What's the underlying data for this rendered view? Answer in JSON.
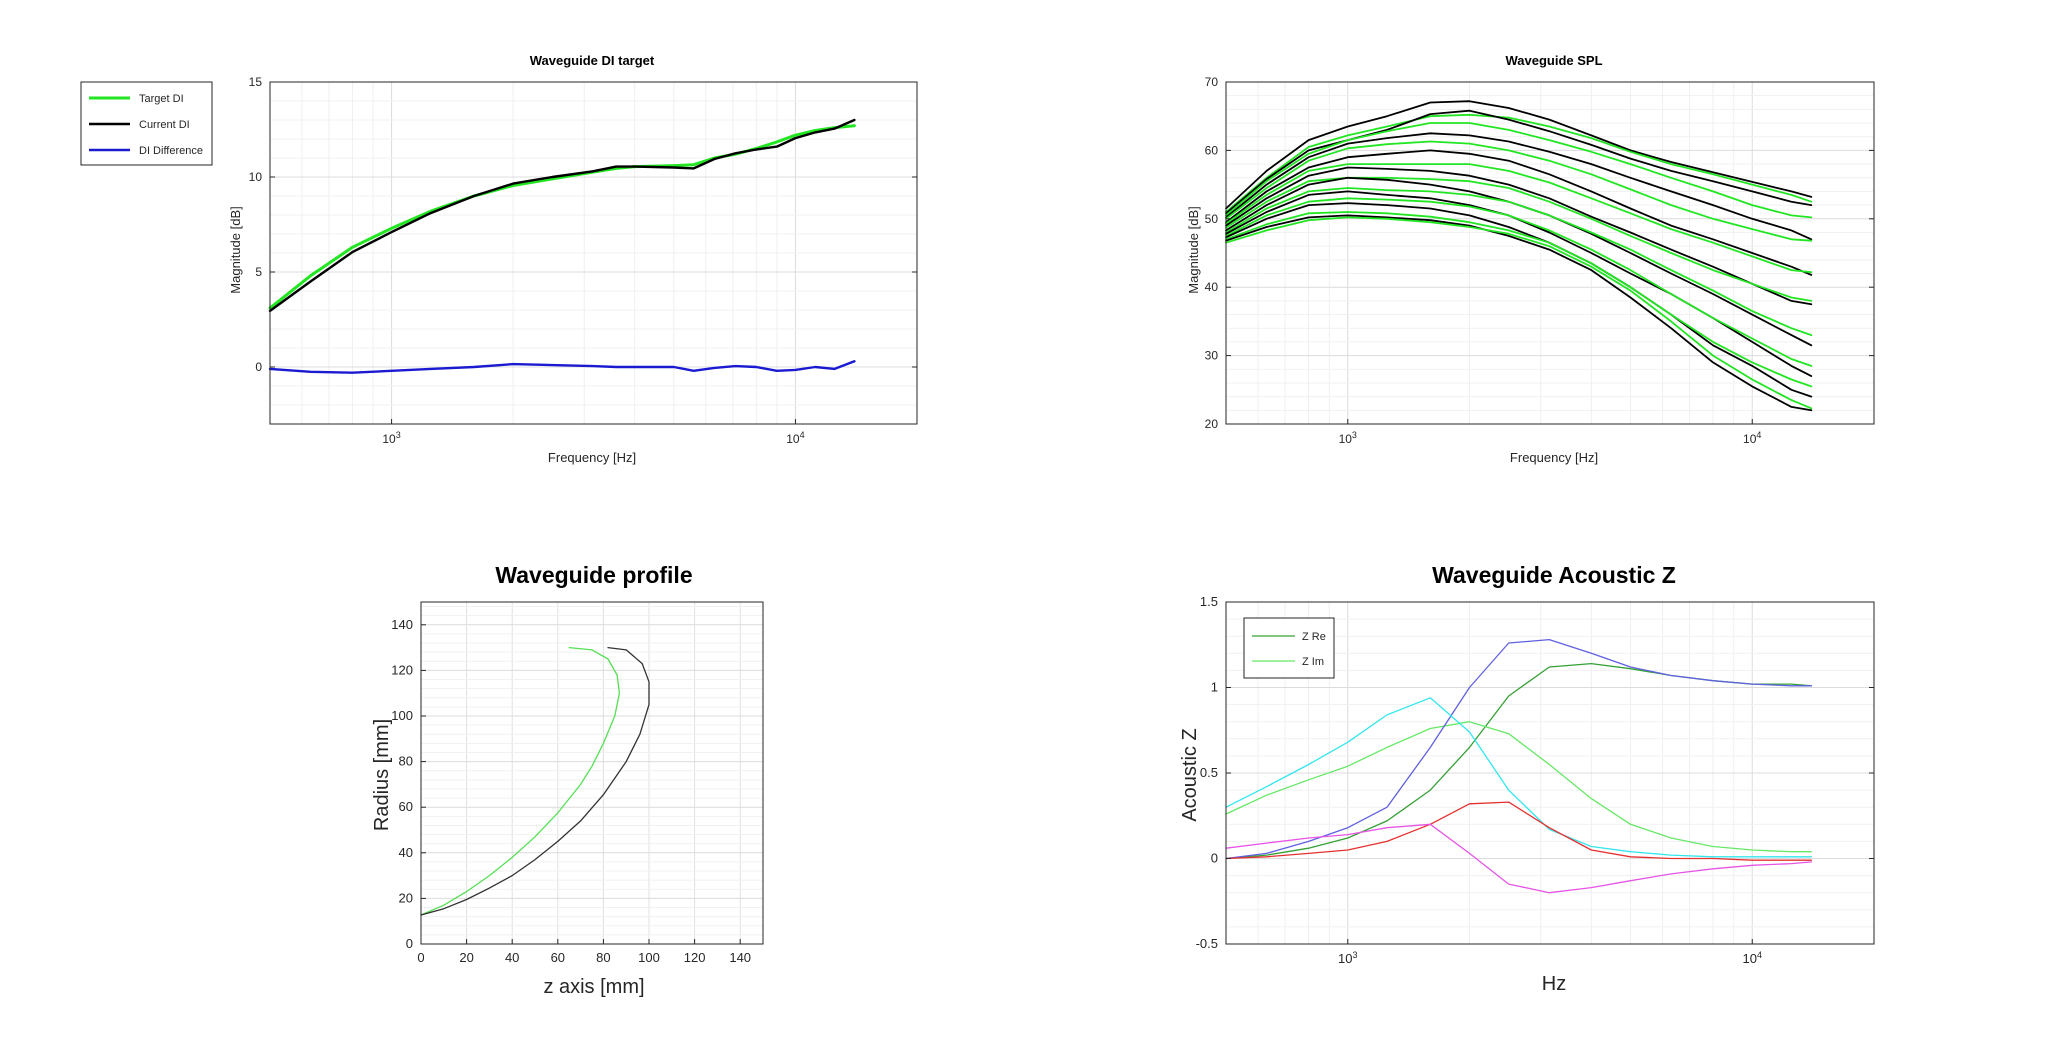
{
  "chart_data": [
    {
      "type": "line",
      "title": "Waveguide DI target",
      "xlabel": "Frequency [Hz]",
      "ylabel": "Magnitude [dB]",
      "xscale": "log",
      "xlim": [
        500,
        20000
      ],
      "ylim": [
        -3,
        15
      ],
      "yticks": [
        0,
        5,
        10,
        15
      ],
      "xticks": [
        {
          "value": 1000,
          "base": "10",
          "exp": "3"
        },
        {
          "value": 10000,
          "base": "10",
          "exp": "4"
        }
      ],
      "grid": true,
      "legend_position": "outside-left",
      "x": [
        500,
        630,
        800,
        1000,
        1250,
        1600,
        2000,
        2500,
        3150,
        3600,
        4000,
        5000,
        5600,
        6300,
        7100,
        8000,
        9000,
        10000,
        11200,
        12500,
        14000
      ],
      "series": [
        {
          "name": "Target DI",
          "color": "#22e622",
          "width": 3,
          "values": [
            3.1,
            4.8,
            6.3,
            7.3,
            8.2,
            9.0,
            9.55,
            9.9,
            10.25,
            10.45,
            10.55,
            10.6,
            10.65,
            11.0,
            11.2,
            11.5,
            11.85,
            12.2,
            12.45,
            12.6,
            12.7
          ]
        },
        {
          "name": "Current DI",
          "color": "#000000",
          "width": 2.4,
          "values": [
            2.95,
            4.5,
            6.05,
            7.1,
            8.1,
            9.0,
            9.65,
            10.0,
            10.3,
            10.55,
            10.55,
            10.5,
            10.45,
            10.95,
            11.25,
            11.45,
            11.6,
            12.05,
            12.35,
            12.55,
            13.0
          ]
        },
        {
          "name": "DI Difference",
          "color": "#1a1ad0",
          "width": 2.4,
          "values": [
            -0.1,
            -0.25,
            -0.3,
            -0.2,
            -0.1,
            0.0,
            0.15,
            0.1,
            0.05,
            0.0,
            0.0,
            0.0,
            -0.2,
            -0.05,
            0.05,
            0.0,
            -0.2,
            -0.15,
            0.0,
            -0.1,
            0.3
          ]
        }
      ]
    },
    {
      "type": "line",
      "title": "Waveguide SPL",
      "xlabel": "Frequency [Hz]",
      "ylabel": "Magnitude [dB]",
      "xscale": "log",
      "xlim": [
        500,
        20000
      ],
      "ylim": [
        20,
        70
      ],
      "yticks": [
        20,
        30,
        40,
        50,
        60,
        70
      ],
      "xticks": [
        {
          "value": 1000,
          "base": "10",
          "exp": "3"
        },
        {
          "value": 10000,
          "base": "10",
          "exp": "4"
        }
      ],
      "grid": true,
      "x": [
        500,
        630,
        800,
        1000,
        1250,
        1600,
        2000,
        2500,
        3150,
        4000,
        5000,
        6300,
        8000,
        10000,
        12500,
        14000
      ],
      "series": [
        {
          "color": "#000000",
          "values": [
            51.5,
            57.0,
            61.5,
            63.5,
            65.0,
            67.0,
            67.2,
            66.2,
            64.5,
            62.2,
            60.0,
            58.3,
            56.8,
            55.4,
            54.0,
            53.2
          ]
        },
        {
          "color": "#22e622",
          "values": [
            51.0,
            56.0,
            60.5,
            62.2,
            63.5,
            65.0,
            65.2,
            64.8,
            63.5,
            61.8,
            59.8,
            58.0,
            56.5,
            55.0,
            53.5,
            52.5
          ]
        },
        {
          "color": "#000000",
          "values": [
            50.8,
            55.8,
            60.0,
            61.5,
            63.0,
            65.3,
            65.8,
            64.5,
            62.8,
            60.8,
            58.8,
            57.0,
            55.5,
            54.0,
            52.5,
            52.0
          ]
        },
        {
          "color": "#22e622",
          "values": [
            50.5,
            55.5,
            59.5,
            61.5,
            62.8,
            64.0,
            64.0,
            63.0,
            61.5,
            59.8,
            58.0,
            56.0,
            54.0,
            52.0,
            50.5,
            50.2
          ]
        },
        {
          "color": "#000000",
          "values": [
            50.2,
            55.0,
            59.0,
            61.0,
            61.8,
            62.5,
            62.2,
            61.3,
            59.8,
            58.0,
            56.0,
            54.0,
            52.0,
            50.0,
            48.3,
            47.0
          ]
        },
        {
          "color": "#22e622",
          "values": [
            50.0,
            54.5,
            58.5,
            60.3,
            60.9,
            61.3,
            61.0,
            60.0,
            58.5,
            56.5,
            54.3,
            52.0,
            50.0,
            48.5,
            47.0,
            46.8
          ]
        },
        {
          "color": "#000000",
          "values": [
            49.5,
            54.0,
            57.5,
            59.0,
            59.5,
            60.0,
            59.5,
            58.5,
            56.5,
            54.0,
            51.5,
            49.0,
            47.0,
            45.0,
            43.0,
            41.8
          ]
        },
        {
          "color": "#22e622",
          "values": [
            49.3,
            53.5,
            57.0,
            58.0,
            58.0,
            58.0,
            58.0,
            57.0,
            55.3,
            53.0,
            50.8,
            48.5,
            46.5,
            44.5,
            42.5,
            42.2
          ]
        },
        {
          "color": "#000000",
          "values": [
            49.0,
            53.0,
            56.3,
            57.5,
            57.3,
            57.0,
            56.3,
            55.0,
            53.0,
            50.3,
            48.0,
            45.5,
            43.0,
            40.5,
            38.0,
            37.5
          ]
        },
        {
          "color": "#22e622",
          "values": [
            48.7,
            52.5,
            55.5,
            56.0,
            56.0,
            55.8,
            55.5,
            54.5,
            52.5,
            50.0,
            47.5,
            45.0,
            42.5,
            40.5,
            38.5,
            38.0
          ]
        },
        {
          "color": "#000000",
          "values": [
            48.3,
            52.0,
            55.0,
            56.0,
            55.7,
            55.0,
            54.0,
            52.5,
            50.5,
            47.8,
            45.0,
            42.0,
            39.0,
            36.0,
            33.0,
            31.5
          ]
        },
        {
          "color": "#22e622",
          "values": [
            48.0,
            51.5,
            54.0,
            54.5,
            54.2,
            54.0,
            53.5,
            52.5,
            50.5,
            48.0,
            45.5,
            42.5,
            39.5,
            36.5,
            34.0,
            33.0
          ]
        },
        {
          "color": "#000000",
          "values": [
            47.8,
            51.0,
            53.5,
            54.0,
            53.5,
            53.0,
            52.0,
            50.5,
            48.0,
            45.0,
            42.0,
            39.0,
            35.5,
            32.0,
            28.5,
            27.0
          ]
        },
        {
          "color": "#22e622",
          "values": [
            47.5,
            50.5,
            52.5,
            53.0,
            52.8,
            52.5,
            51.8,
            50.5,
            48.3,
            45.5,
            42.5,
            39.0,
            35.5,
            32.5,
            29.5,
            28.5
          ]
        },
        {
          "color": "#000000",
          "values": [
            47.3,
            50.0,
            52.0,
            52.3,
            52.0,
            51.5,
            50.5,
            48.8,
            46.5,
            43.5,
            40.0,
            36.0,
            31.5,
            28.5,
            25.0,
            24.0
          ]
        },
        {
          "color": "#22e622",
          "values": [
            47.0,
            49.2,
            50.8,
            51.0,
            50.8,
            50.3,
            49.5,
            48.3,
            46.5,
            43.5,
            40.0,
            36.0,
            32.0,
            29.0,
            26.5,
            25.5
          ]
        },
        {
          "color": "#000000",
          "values": [
            46.8,
            48.8,
            50.2,
            50.5,
            50.2,
            49.8,
            49.0,
            47.5,
            45.5,
            42.5,
            38.5,
            34.0,
            29.0,
            25.5,
            22.5,
            22.0
          ]
        },
        {
          "color": "#22e622",
          "values": [
            46.5,
            48.3,
            49.8,
            50.2,
            50.0,
            49.5,
            48.8,
            47.8,
            46.0,
            43.0,
            39.5,
            35.0,
            30.0,
            26.5,
            23.5,
            22.3
          ]
        }
      ]
    },
    {
      "type": "line",
      "title": "Waveguide profile",
      "xlabel": "z axis [mm]",
      "ylabel": "Radius [mm]",
      "xlim": [
        0,
        150
      ],
      "ylim": [
        0,
        150
      ],
      "xticks": [
        0,
        20,
        40,
        60,
        80,
        100,
        120,
        140
      ],
      "yticks": [
        0,
        20,
        40,
        60,
        80,
        100,
        120,
        140
      ],
      "grid": true,
      "series": [
        {
          "color": "#55e055",
          "points": [
            [
              0,
              12.7
            ],
            [
              10,
              17
            ],
            [
              20,
              23
            ],
            [
              30,
              30
            ],
            [
              40,
              38
            ],
            [
              50,
              47
            ],
            [
              60,
              57.5
            ],
            [
              70,
              70
            ],
            [
              75,
              78
            ],
            [
              80,
              88
            ],
            [
              85,
              100
            ],
            [
              87,
              110
            ],
            [
              86,
              118
            ],
            [
              82,
              125
            ],
            [
              75,
              129
            ],
            [
              65,
              130
            ]
          ]
        },
        {
          "color": "#333333",
          "points": [
            [
              0,
              12.7
            ],
            [
              10,
              15.5
            ],
            [
              20,
              19.5
            ],
            [
              30,
              24.5
            ],
            [
              40,
              30
            ],
            [
              50,
              37
            ],
            [
              60,
              45
            ],
            [
              70,
              54
            ],
            [
              80,
              65.5
            ],
            [
              90,
              80
            ],
            [
              96,
              92
            ],
            [
              100,
              105
            ],
            [
              100,
              115
            ],
            [
              97,
              123
            ],
            [
              90,
              129
            ],
            [
              82,
              130
            ]
          ]
        }
      ]
    },
    {
      "type": "line",
      "title": "Waveguide Acoustic Z",
      "xlabel": "Hz",
      "ylabel": "Acoustic Z",
      "xscale": "log",
      "xlim": [
        500,
        20000
      ],
      "ylim": [
        -0.5,
        1.5
      ],
      "yticks": [
        -0.5,
        0,
        0.5,
        1,
        1.5
      ],
      "xticks": [
        {
          "value": 1000,
          "base": "10",
          "exp": "3"
        },
        {
          "value": 10000,
          "base": "10",
          "exp": "4"
        }
      ],
      "grid": true,
      "legend_position": "top-left",
      "x": [
        500,
        630,
        800,
        1000,
        1250,
        1600,
        2000,
        2500,
        3150,
        4000,
        5000,
        6300,
        8000,
        10000,
        12500,
        14000
      ],
      "series": [
        {
          "name": "Z Re",
          "color": "#35a035",
          "values": [
            0.0,
            0.02,
            0.06,
            0.12,
            0.22,
            0.4,
            0.65,
            0.95,
            1.12,
            1.14,
            1.11,
            1.07,
            1.04,
            1.02,
            1.02,
            1.01
          ]
        },
        {
          "name": "Z Im",
          "color": "#66e866",
          "values": [
            0.26,
            0.37,
            0.46,
            0.54,
            0.65,
            0.76,
            0.8,
            0.73,
            0.55,
            0.35,
            0.2,
            0.12,
            0.07,
            0.05,
            0.04,
            0.04
          ]
        },
        {
          "color": "#6060e0",
          "values": [
            0.0,
            0.03,
            0.1,
            0.18,
            0.3,
            0.65,
            1.0,
            1.26,
            1.28,
            1.2,
            1.12,
            1.07,
            1.04,
            1.02,
            1.01,
            1.01
          ]
        },
        {
          "color": "#33e6ee",
          "values": [
            0.3,
            0.42,
            0.55,
            0.68,
            0.84,
            0.94,
            0.74,
            0.4,
            0.17,
            0.07,
            0.04,
            0.02,
            0.01,
            0.01,
            0.01,
            0.01
          ]
        },
        {
          "color": "#e63030",
          "values": [
            0.0,
            0.01,
            0.03,
            0.05,
            0.1,
            0.2,
            0.32,
            0.33,
            0.18,
            0.05,
            0.01,
            0.0,
            0.0,
            -0.01,
            -0.01,
            -0.01
          ]
        },
        {
          "color": "#e655e6",
          "values": [
            0.06,
            0.09,
            0.12,
            0.14,
            0.18,
            0.2,
            0.03,
            -0.15,
            -0.2,
            -0.17,
            -0.13,
            -0.09,
            -0.06,
            -0.04,
            -0.03,
            -0.02
          ]
        }
      ]
    }
  ]
}
